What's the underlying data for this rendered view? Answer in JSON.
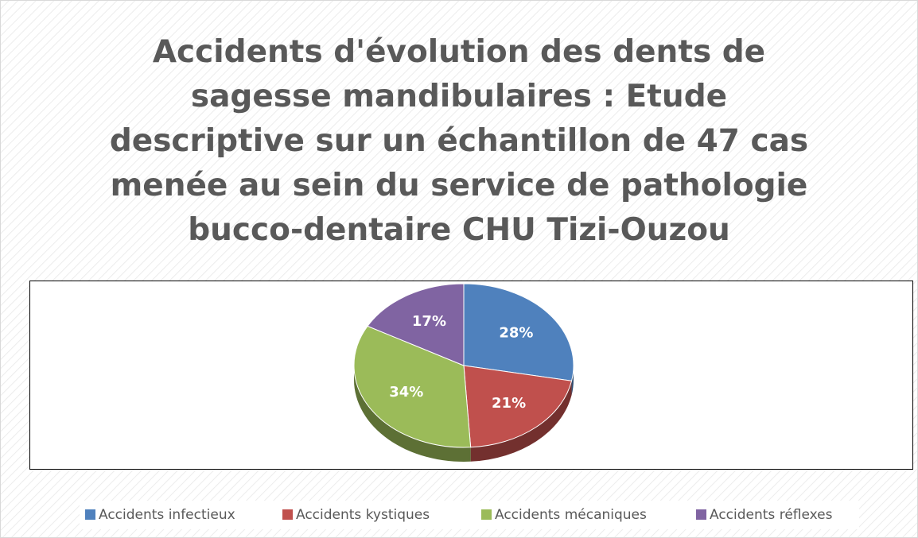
{
  "chart_data": {
    "type": "pie",
    "title": "Accidents d'évolution des dents de sagesse mandibulaires : Etude descriptive sur un échantillon de 47 cas menée au sein du service de pathologie bucco-dentaire CHU Tizi-Ouzou",
    "categories": [
      "Accidents infectieux",
      "Accidents kystiques",
      "Accidents mécaniques",
      "Accidents réflexes"
    ],
    "values": [
      28,
      21,
      34,
      17
    ],
    "value_labels": [
      "28%",
      "21%",
      "34%",
      "17%"
    ],
    "colors": [
      "#4f81bd",
      "#c0504d",
      "#9bbb59",
      "#8064a2"
    ],
    "legend": "bottom"
  }
}
